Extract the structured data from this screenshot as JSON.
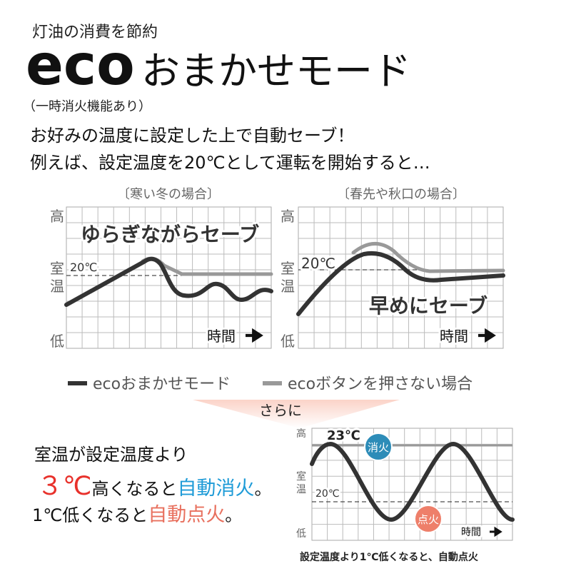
{
  "header": {
    "subtitle": "灯油の消費を節約",
    "title_eco": "eco",
    "title_rest": "おまかせモード",
    "note": "（一時消火機能あり）"
  },
  "intro": [
    "お好みの温度に設定した上で自動セーブ！",
    "例えば、設定温度を20℃として運転を開始すると…"
  ],
  "graphs": [
    {
      "caption": "〔寒い冬の場合〕",
      "high": "高",
      "room": [
        "室",
        "温"
      ],
      "low": "低",
      "setpoint": "20℃",
      "label": "ゆらぎながらセーブ",
      "time": "時間"
    },
    {
      "caption": "〔春先や秋口の場合〕",
      "high": "高",
      "room": [
        "室",
        "温"
      ],
      "low": "低",
      "setpoint": "20℃",
      "label": "早めにセーブ",
      "time": "時間"
    }
  ],
  "legend": [
    "ecoおまかせモード",
    "ecoボタンを押さない場合"
  ],
  "further": "さらに",
  "detail": {
    "line1": "室温が設定温度より",
    "line2": [
      "３℃",
      "高くなると",
      "自動消火",
      "。"
    ],
    "line3": [
      "1℃低くなると",
      "自動点火",
      "。"
    ]
  },
  "graph3": {
    "high": "高",
    "room": [
      "室",
      "温"
    ],
    "low": "低",
    "setpoint": "20℃",
    "peak": "23℃",
    "off": "消火",
    "on": "点火",
    "time": "時間",
    "caption": "設定温度より1℃低くなると、自動点火"
  }
}
